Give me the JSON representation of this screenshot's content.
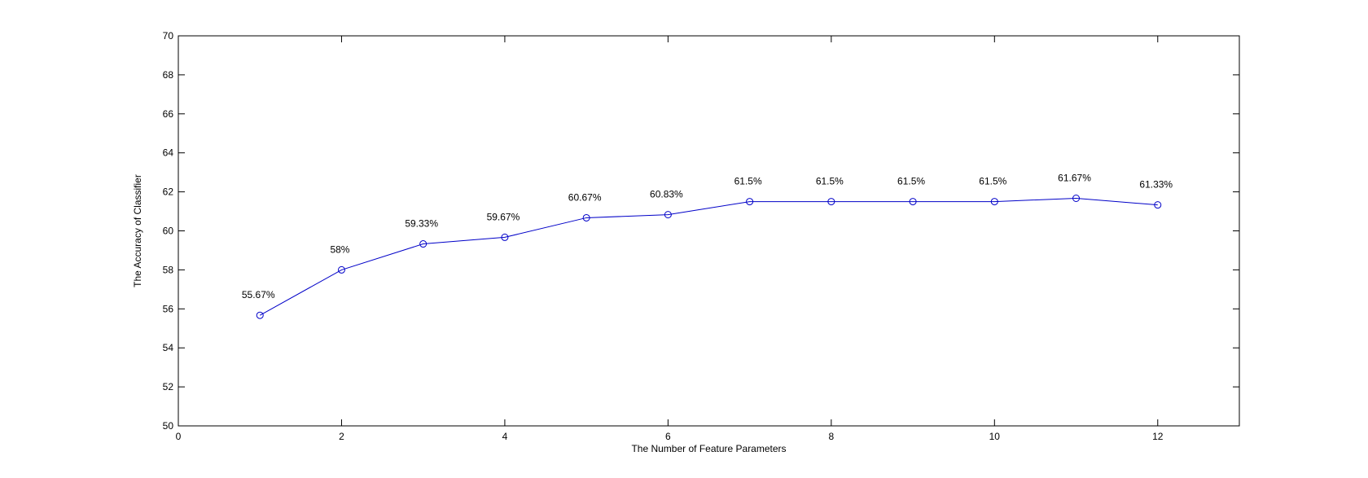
{
  "chart_data": {
    "type": "line",
    "title": "",
    "xlabel": "The Number of Feature Parameters",
    "ylabel": "The Accuracy of Classifier",
    "xlim": [
      0,
      13
    ],
    "ylim": [
      50,
      70
    ],
    "xticks": [
      0,
      2,
      4,
      6,
      8,
      10,
      12
    ],
    "yticks": [
      50,
      52,
      54,
      56,
      58,
      60,
      62,
      64,
      66,
      68,
      70
    ],
    "grid": false,
    "legend": "none",
    "line_color": "#0000c8",
    "marker": "circle",
    "series": [
      {
        "x": [
          1,
          2,
          3,
          4,
          5,
          6,
          7,
          8,
          9,
          10,
          11,
          12
        ],
        "values": [
          55.67,
          58,
          59.33,
          59.67,
          60.67,
          60.83,
          61.5,
          61.5,
          61.5,
          61.5,
          61.67,
          61.33
        ]
      }
    ],
    "data_labels": [
      "55.67%",
      "58%",
      "59.33%",
      "59.67%",
      "60.67%",
      "60.83%",
      "61.5%",
      "61.5%",
      "61.5%",
      "61.5%",
      "61.67%",
      "61.33%"
    ]
  }
}
